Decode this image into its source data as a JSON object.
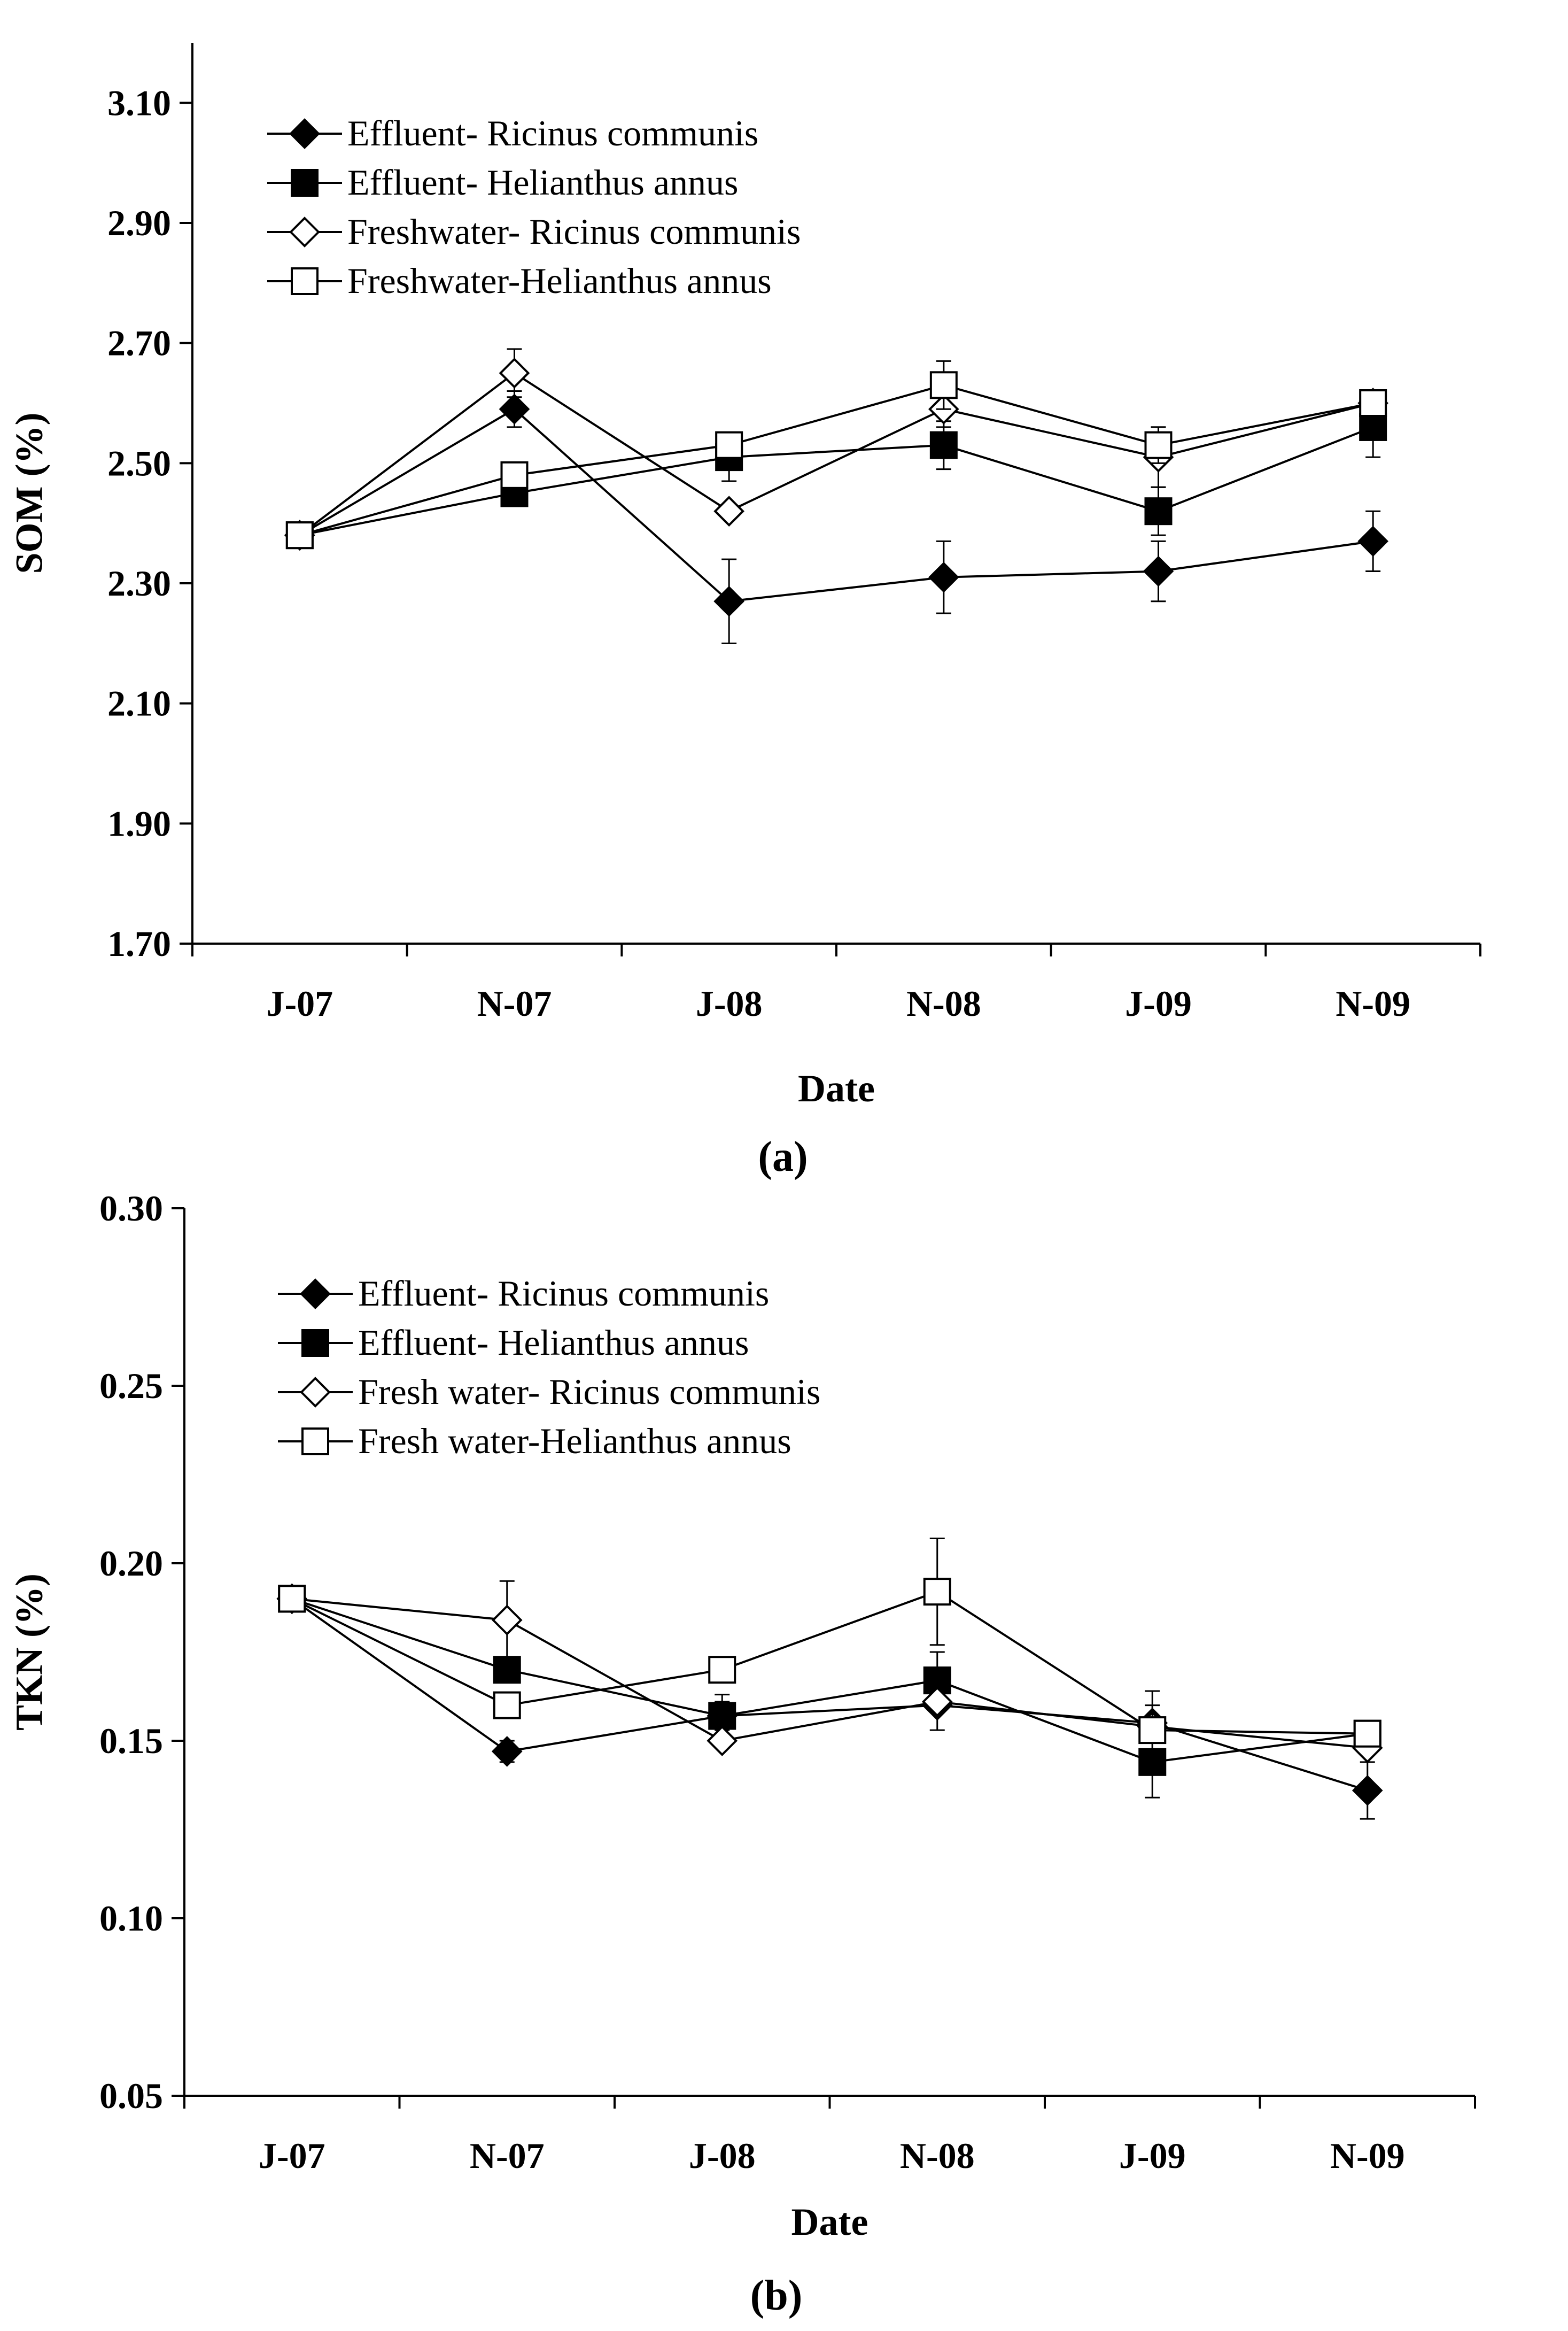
{
  "chart_data": [
    {
      "type": "line",
      "panel_label": "(a)",
      "xlabel": "Date",
      "ylabel": "SOM (%)",
      "categories": [
        "J-07",
        "N-07",
        "J-08",
        "N-08",
        "J-09",
        "N-09"
      ],
      "ylim": [
        1.7,
        3.2
      ],
      "yticks": [
        "1.70",
        "1.90",
        "2.10",
        "2.30",
        "2.50",
        "2.70",
        "2.90",
        "3.10"
      ],
      "grid": false,
      "legend_position": "top-left",
      "series": [
        {
          "name": "Effluent- Ricinus communis",
          "marker": "diamond-filled",
          "values": [
            2.38,
            2.59,
            2.27,
            2.31,
            2.32,
            2.37
          ],
          "errors": [
            0.01,
            0.03,
            0.07,
            0.06,
            0.05,
            0.05
          ]
        },
        {
          "name": "Effluent- Helianthus annus",
          "marker": "square-filled",
          "values": [
            2.38,
            2.45,
            2.51,
            2.53,
            2.42,
            2.56
          ],
          "errors": [
            0.01,
            0.01,
            0.04,
            0.04,
            0.04,
            0.05
          ]
        },
        {
          "name": "Freshwater- Ricinus communis",
          "marker": "diamond-open",
          "values": [
            2.38,
            2.65,
            2.42,
            2.59,
            2.51,
            2.6
          ],
          "errors": [
            0.01,
            0.04,
            0.01,
            0.03,
            0.05,
            0.02
          ]
        },
        {
          "name": "Freshwater-Helianthus annus",
          "marker": "square-open",
          "values": [
            2.38,
            2.48,
            2.53,
            2.63,
            2.53,
            2.6
          ],
          "errors": [
            0.01,
            0.01,
            0.01,
            0.04,
            0.03,
            0.02
          ]
        }
      ]
    },
    {
      "type": "line",
      "panel_label": "(b)",
      "xlabel": "Date",
      "ylabel": "TKN (%)",
      "categories": [
        "J-07",
        "N-07",
        "J-08",
        "N-08",
        "J-09",
        "N-09"
      ],
      "ylim": [
        0.05,
        0.3
      ],
      "yticks": [
        "0.05",
        "0.10",
        "0.15",
        "0.20",
        "0.25",
        "0.30"
      ],
      "grid": false,
      "legend_position": "top-left",
      "series": [
        {
          "name": "Effluent- Ricinus communis",
          "marker": "diamond-filled",
          "values": [
            0.19,
            0.147,
            0.157,
            0.16,
            0.155,
            0.136
          ],
          "errors": [
            0.001,
            0.003,
            0.004,
            0.007,
            0.005,
            0.008
          ]
        },
        {
          "name": "Effluent- Helianthus annus",
          "marker": "square-filled",
          "values": [
            0.19,
            0.17,
            0.157,
            0.167,
            0.144,
            0.152
          ],
          "errors": [
            0.001,
            0.002,
            0.006,
            0.008,
            0.01,
            0.002
          ]
        },
        {
          "name": "Fresh water- Ricinus communis",
          "marker": "diamond-open",
          "values": [
            0.19,
            0.184,
            0.15,
            0.161,
            0.154,
            0.148
          ],
          "errors": [
            0.001,
            0.011,
            0.002,
            0.003,
            0.002,
            0.002
          ]
        },
        {
          "name": "Fresh water-Helianthus annus",
          "marker": "square-open",
          "values": [
            0.19,
            0.16,
            0.17,
            0.192,
            0.153,
            0.152
          ],
          "errors": [
            0.001,
            0.002,
            0.002,
            0.015,
            0.011,
            0.002
          ]
        }
      ]
    }
  ]
}
